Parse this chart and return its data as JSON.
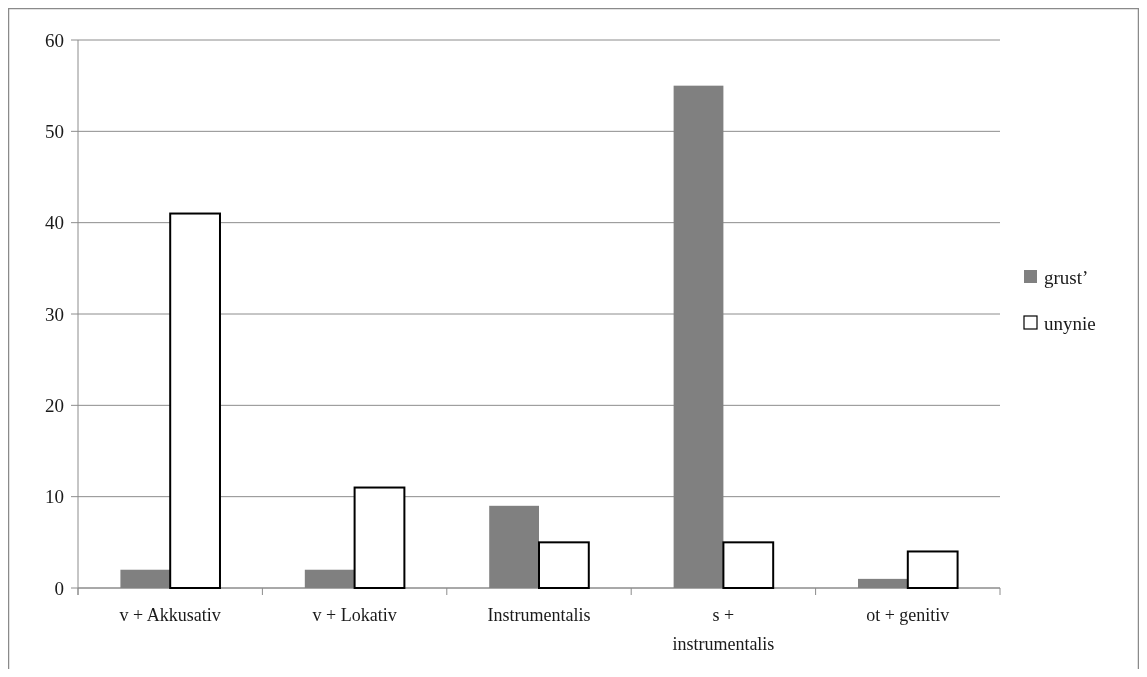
{
  "chart_data": {
    "type": "bar",
    "categories": [
      "v + Akkusativ",
      "v + Lokativ",
      "Instrumentalis",
      "s + instrumentalis",
      "ot + genitiv"
    ],
    "series": [
      {
        "name": "grust’",
        "color": "#808080",
        "values": [
          2,
          2,
          9,
          55,
          1
        ]
      },
      {
        "name": "unynie",
        "color": "#ffffff",
        "values": [
          41,
          11,
          5,
          5,
          4
        ]
      }
    ],
    "ylim": [
      0,
      60
    ],
    "yticks": [
      0,
      10,
      20,
      30,
      40,
      50,
      60
    ],
    "grid": "y",
    "legend": "right"
  }
}
